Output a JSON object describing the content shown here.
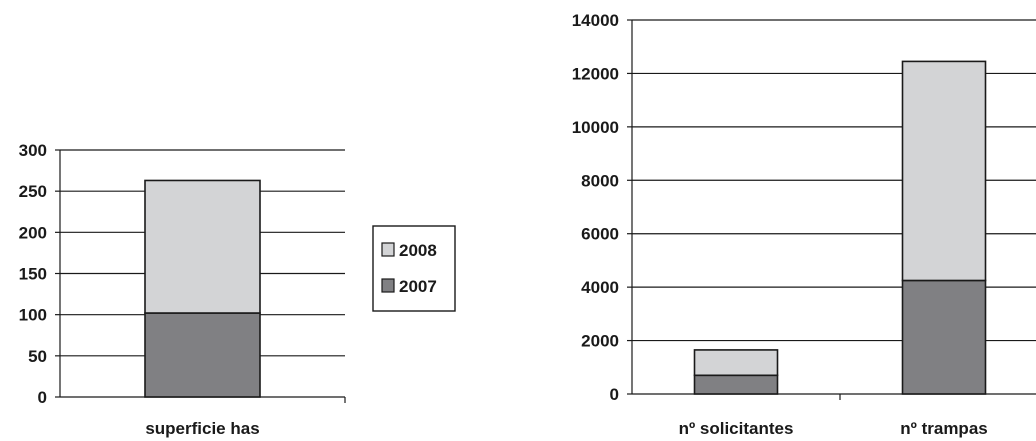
{
  "chart_data": [
    {
      "type": "bar",
      "stacked": true,
      "categories": [
        "superficie has"
      ],
      "series": [
        {
          "name": "2007",
          "values": [
            102
          ],
          "color": "#808083"
        },
        {
          "name": "2008",
          "values": [
            161
          ],
          "color": "#d3d4d6"
        }
      ],
      "ylim": [
        0,
        300
      ],
      "yticks": [
        "0",
        "50",
        "100",
        "150",
        "200",
        "250",
        "300"
      ],
      "grid": "horizontal",
      "legend": {
        "placement": "right",
        "entries": [
          {
            "label": "2008",
            "color": "#d3d4d6"
          },
          {
            "label": "2007",
            "color": "#808083"
          }
        ]
      }
    },
    {
      "type": "bar",
      "stacked": true,
      "categories": [
        "nº solicitantes",
        "nº trampas"
      ],
      "series": [
        {
          "name": "2007",
          "values": [
            700,
            4250
          ],
          "color": "#808083"
        },
        {
          "name": "2008",
          "values": [
            950,
            8200
          ],
          "color": "#d3d4d6"
        }
      ],
      "ylim": [
        0,
        14000
      ],
      "yticks": [
        "0",
        "2000",
        "4000",
        "6000",
        "8000",
        "10000",
        "12000",
        "14000"
      ],
      "grid": "horizontal"
    }
  ]
}
